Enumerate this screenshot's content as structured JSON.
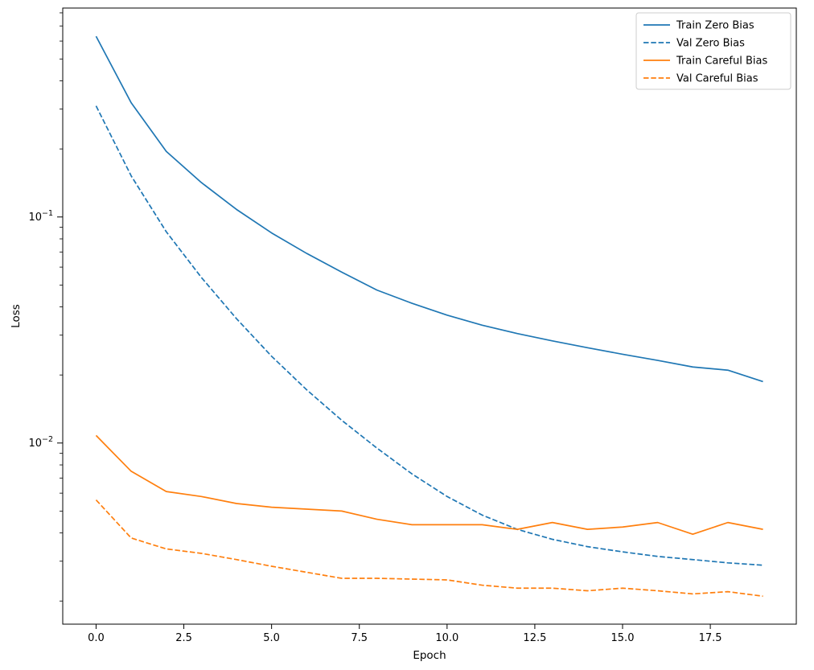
{
  "figure": {
    "background": "#ffffff"
  },
  "chart_data": {
    "type": "line",
    "title": "",
    "xlabel": "Epoch",
    "ylabel": "Loss",
    "yscale": "log",
    "grid": false,
    "legend_position": "upper right",
    "xlim": [
      -0.95,
      19.95
    ],
    "ylim": [
      0.00158,
      0.84
    ],
    "x": [
      0,
      1,
      2,
      3,
      4,
      5,
      6,
      7,
      8,
      9,
      10,
      11,
      12,
      13,
      14,
      15,
      16,
      17,
      18,
      19
    ],
    "xticks": [
      {
        "value": 0.0,
        "label": "0.0"
      },
      {
        "value": 2.5,
        "label": "2.5"
      },
      {
        "value": 5.0,
        "label": "5.0"
      },
      {
        "value": 7.5,
        "label": "7.5"
      },
      {
        "value": 10.0,
        "label": "10.0"
      },
      {
        "value": 12.5,
        "label": "12.5"
      },
      {
        "value": 15.0,
        "label": "15.0"
      },
      {
        "value": 17.5,
        "label": "17.5"
      }
    ],
    "yticks": [
      {
        "value": 0.1,
        "base": "10",
        "exp": "−1"
      },
      {
        "value": 0.01,
        "base": "10",
        "exp": "−2"
      }
    ],
    "series": [
      {
        "name": "Train Zero Bias",
        "color": "#1f77b4",
        "style": "solid",
        "values": [
          0.63,
          0.32,
          0.195,
          0.142,
          0.108,
          0.085,
          0.069,
          0.057,
          0.0475,
          0.0415,
          0.0368,
          0.0332,
          0.0305,
          0.0283,
          0.0264,
          0.0247,
          0.0232,
          0.0217,
          0.021,
          0.0187
        ]
      },
      {
        "name": "Val Zero Bias",
        "color": "#1f77b4",
        "style": "dashed",
        "values": [
          0.31,
          0.152,
          0.086,
          0.054,
          0.0355,
          0.0242,
          0.0172,
          0.0126,
          0.0095,
          0.0073,
          0.0058,
          0.0048,
          0.00415,
          0.00375,
          0.00348,
          0.0033,
          0.00315,
          0.00305,
          0.00295,
          0.00288
        ]
      },
      {
        "name": "Train Careful Bias",
        "color": "#ff7f0e",
        "style": "solid",
        "values": [
          0.0108,
          0.0075,
          0.0061,
          0.0058,
          0.0054,
          0.0052,
          0.0051,
          0.005,
          0.0046,
          0.00435,
          0.00435,
          0.00435,
          0.00415,
          0.00445,
          0.00415,
          0.00425,
          0.00445,
          0.00395,
          0.00445,
          0.00415
        ]
      },
      {
        "name": "Val Careful Bias",
        "color": "#ff7f0e",
        "style": "dashed",
        "values": [
          0.0056,
          0.0038,
          0.0034,
          0.00325,
          0.00305,
          0.00285,
          0.00268,
          0.00252,
          0.00252,
          0.0025,
          0.00248,
          0.00235,
          0.00228,
          0.00228,
          0.00222,
          0.00228,
          0.00222,
          0.00215,
          0.0022,
          0.0021
        ]
      }
    ]
  }
}
